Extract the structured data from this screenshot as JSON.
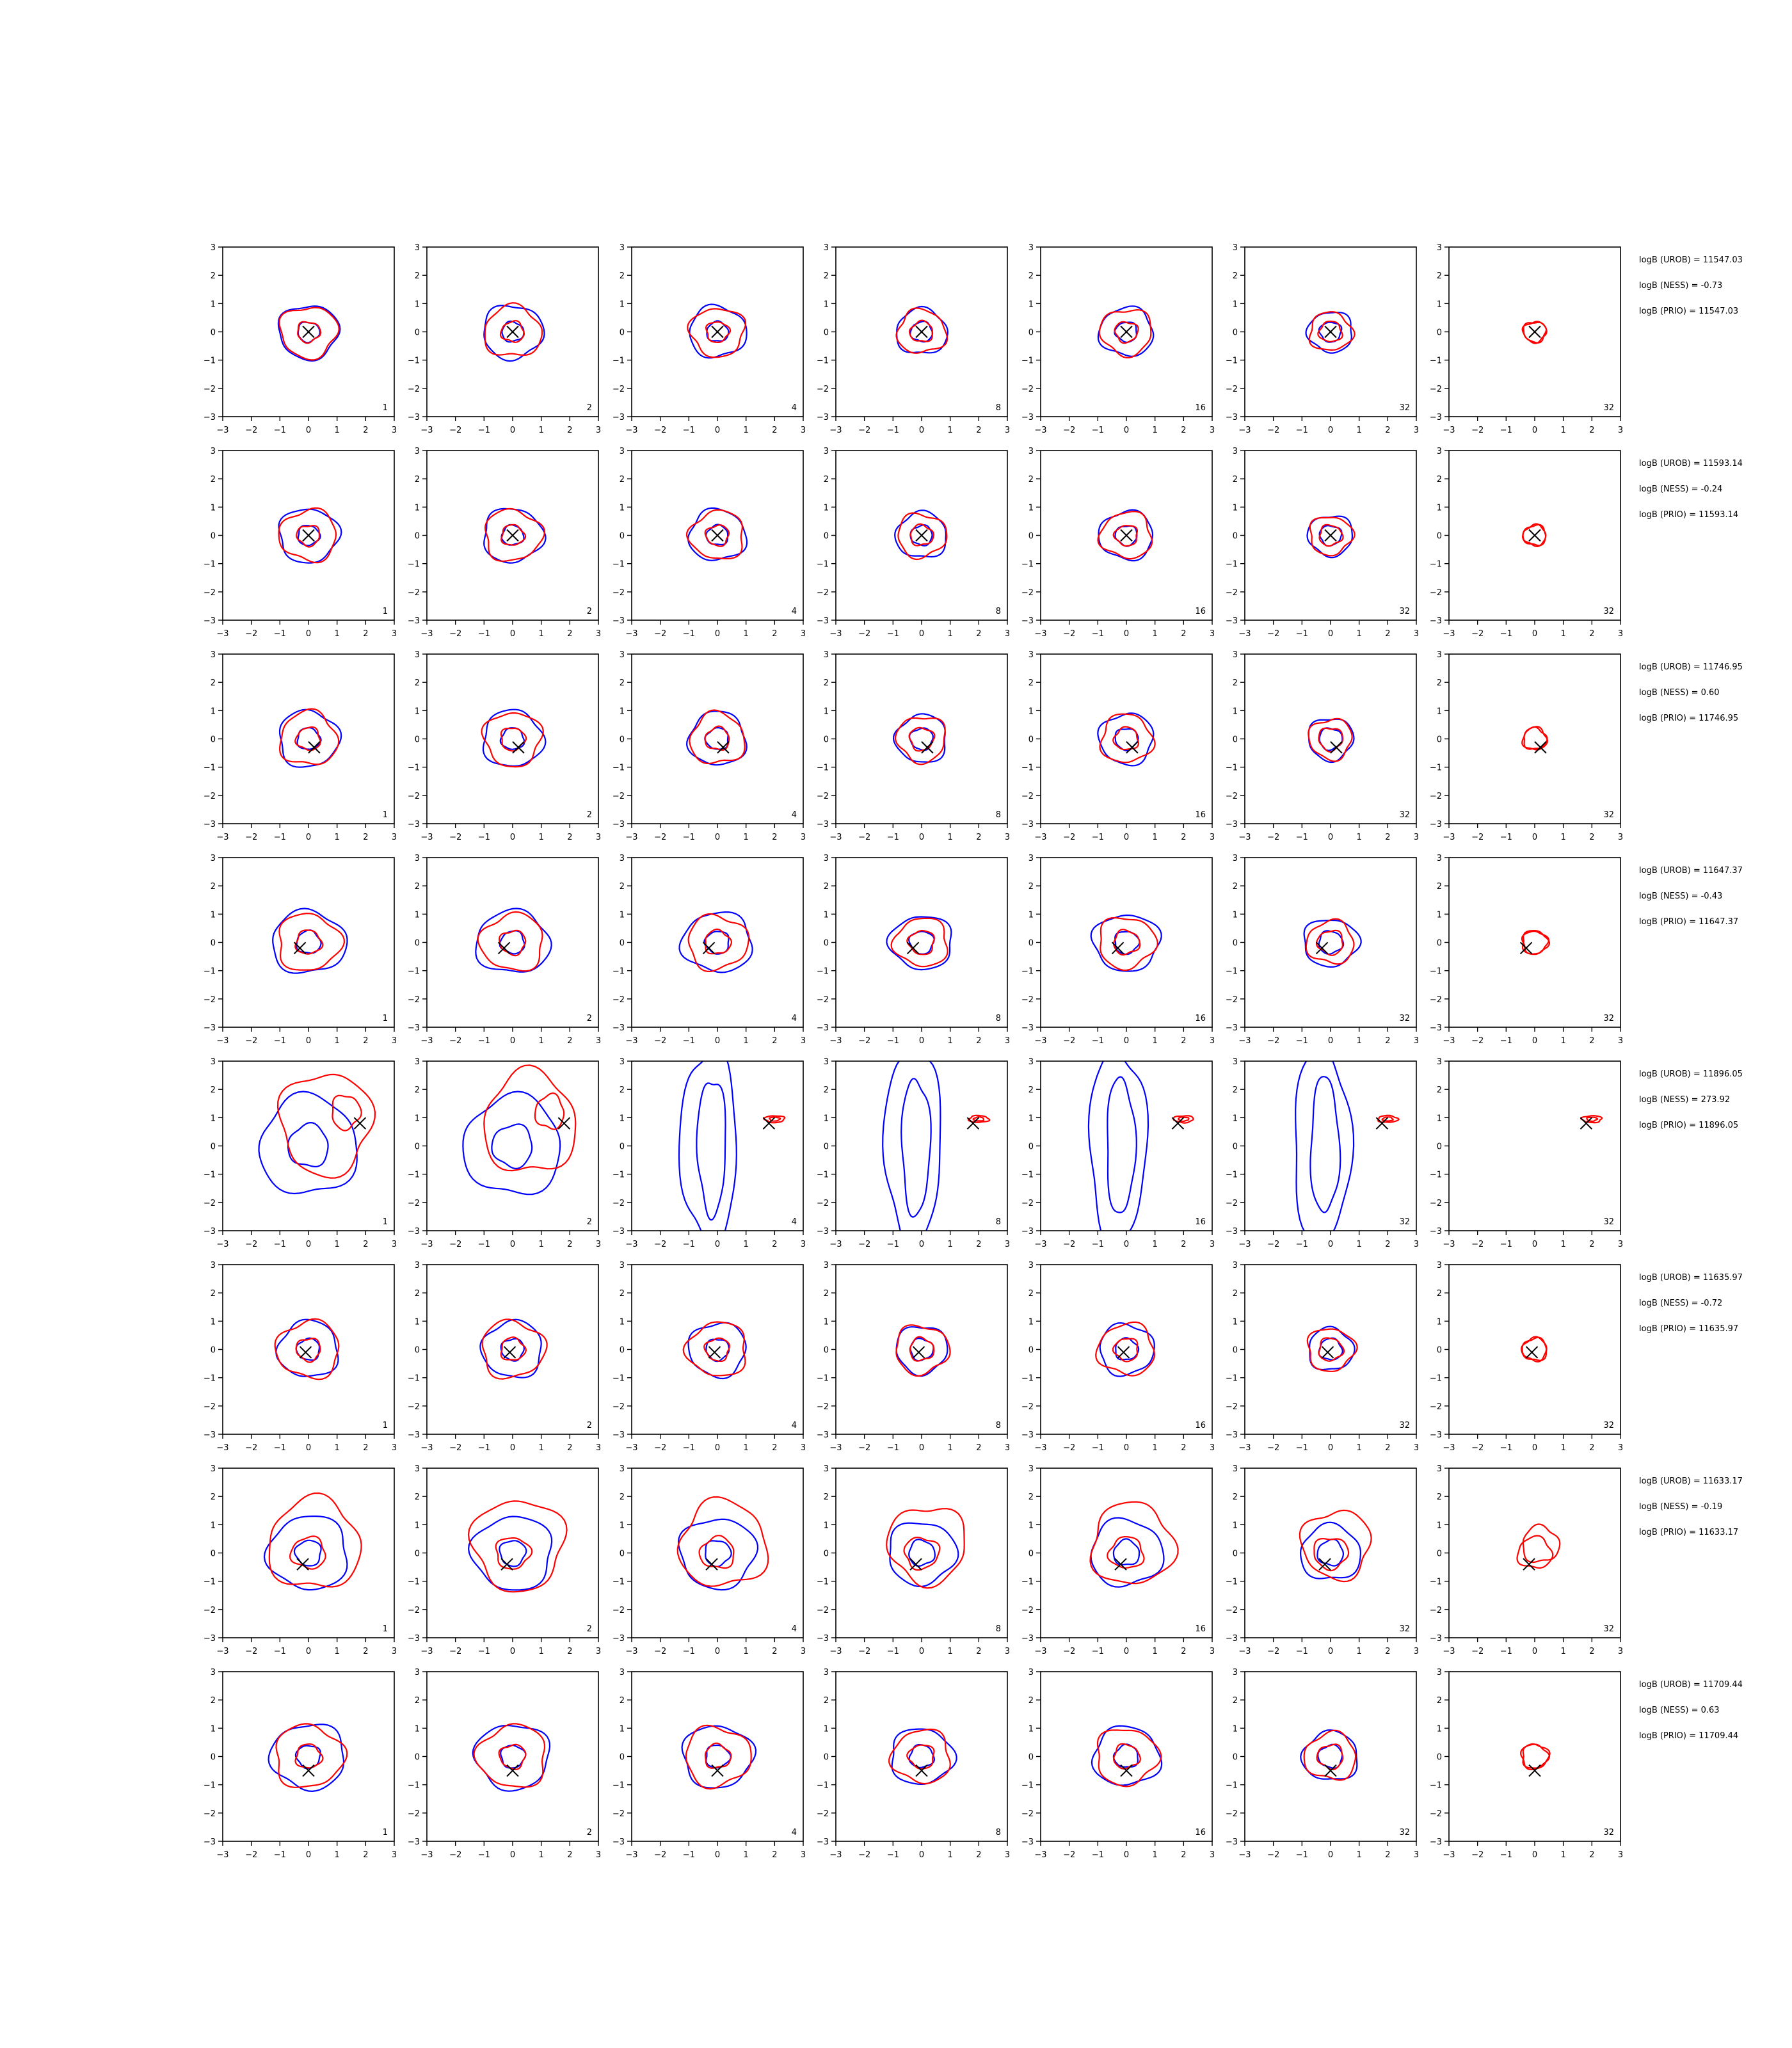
{
  "figure": {
    "axis_range": [
      -3,
      3
    ],
    "ticks": [
      "−3",
      "−2",
      "−1",
      "0",
      "1",
      "2",
      "3"
    ],
    "tick_values": [
      -3,
      -2,
      -1,
      0,
      1,
      2,
      3
    ],
    "colors": {
      "blue": "#0000ff",
      "red": "#ff0000",
      "marker": "#000000",
      "frame": "#000000"
    },
    "panel_labels": [
      "1",
      "2",
      "4",
      "8",
      "16",
      "32",
      "32"
    ]
  },
  "chart_data": {
    "type": "contour-grid",
    "rows": [
      {
        "marker": [
          0.0,
          0.0
        ],
        "blue": [
          [
            0,
            0,
            1.05,
            0.95
          ],
          [
            0,
            0,
            0.38,
            0.35
          ]
        ],
        "red": [
          [
            0,
            0,
            1.0,
            0.9
          ],
          [
            0,
            0,
            0.4,
            0.36
          ]
        ],
        "annotations": [
          "logB (UROB) = 11547.03",
          "logB (NESS) = -0.73",
          "logB (PRIO) = 11547.03"
        ]
      },
      {
        "marker": [
          0.0,
          0.0
        ],
        "blue": [
          [
            0,
            0,
            1.05,
            0.95
          ],
          [
            0,
            0,
            0.38,
            0.35
          ]
        ],
        "red": [
          [
            0,
            0,
            1.0,
            0.9
          ],
          [
            0,
            0,
            0.4,
            0.36
          ]
        ],
        "annotations": [
          "logB (UROB) = 11593.14",
          "logB (NESS) = -0.24",
          "logB (PRIO) = 11593.14"
        ]
      },
      {
        "marker": [
          0.2,
          -0.3
        ],
        "blue": [
          [
            0,
            0,
            1.05,
            1.0
          ],
          [
            0,
            0,
            0.4,
            0.38
          ]
        ],
        "red": [
          [
            0,
            0,
            1.0,
            0.95
          ],
          [
            0,
            0,
            0.42,
            0.4
          ]
        ],
        "annotations": [
          "logB (UROB) = 11746.95",
          "logB (NESS) = 0.60",
          "logB (PRIO) = 11746.95"
        ]
      },
      {
        "marker": [
          -0.3,
          -0.2
        ],
        "blue": [
          [
            0,
            0,
            1.3,
            1.1
          ],
          [
            0,
            0,
            0.42,
            0.4
          ]
        ],
        "red": [
          [
            0,
            0,
            1.1,
            1.0
          ],
          [
            0,
            0,
            0.45,
            0.42
          ]
        ],
        "annotations": [
          "logB (UROB) = 11647.37",
          "logB (NESS) = -0.43",
          "logB (PRIO) = 11647.37"
        ]
      },
      {
        "marker": [
          1.8,
          0.8
        ],
        "blue": [
          [
            0,
            0,
            1.7,
            1.75
          ],
          [
            0,
            0,
            0.7,
            0.75
          ]
        ],
        "red": [
          [
            0.6,
            0.8,
            1.6,
            1.8
          ],
          [
            1.3,
            1.2,
            0.5,
            0.6
          ]
        ],
        "annotations": [
          "logB (UROB) = 11896.05",
          "logB (NESS) = 273.92",
          "logB (PRIO) = 11896.05"
        ]
      },
      {
        "marker": [
          -0.1,
          -0.1
        ],
        "blue": [
          [
            0,
            0,
            1.05,
            1.0
          ],
          [
            0,
            0,
            0.4,
            0.38
          ]
        ],
        "red": [
          [
            0,
            0,
            1.1,
            1.0
          ],
          [
            0,
            0,
            0.42,
            0.4
          ]
        ],
        "annotations": [
          "logB (UROB) = 11635.97",
          "logB (NESS) = -0.72",
          "logB (PRIO) = 11635.97"
        ]
      },
      {
        "marker": [
          -0.2,
          -0.4
        ],
        "blue": [
          [
            0,
            0,
            1.4,
            1.3
          ],
          [
            0,
            0,
            0.45,
            0.45
          ]
        ],
        "red": [
          [
            0.2,
            0.3,
            1.6,
            1.6
          ],
          [
            0,
            0,
            0.6,
            0.55
          ]
        ],
        "annotations": [
          "logB (UROB) = 11633.17",
          "logB (NESS) = -0.19",
          "logB (PRIO) = 11633.17"
        ]
      },
      {
        "marker": [
          0.0,
          -0.5
        ],
        "blue": [
          [
            0,
            0,
            1.3,
            1.15
          ],
          [
            0,
            0,
            0.42,
            0.4
          ]
        ],
        "red": [
          [
            0,
            0,
            1.2,
            1.1
          ],
          [
            0,
            0,
            0.45,
            0.42
          ]
        ],
        "annotations": [
          "logB (UROB) = 11709.44",
          "logB (NESS) = 0.63",
          "logB (PRIO) = 11709.44"
        ]
      }
    ],
    "column_scale": [
      1.0,
      1.0,
      0.95,
      0.85,
      0.9,
      0.75,
      0.4
    ]
  }
}
